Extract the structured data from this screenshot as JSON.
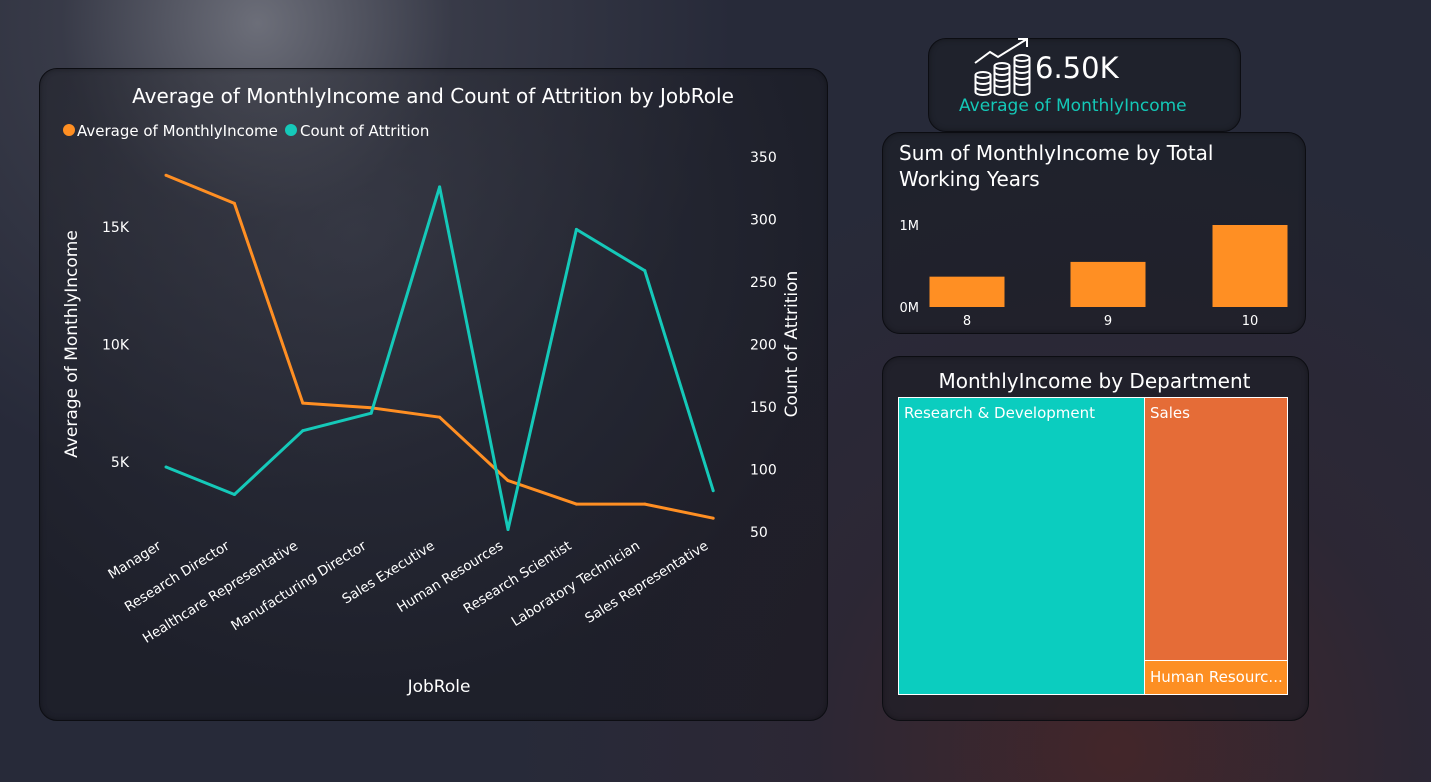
{
  "colors": {
    "income": "#ff8f23",
    "attrition": "#15c9b9",
    "background": "#272a39"
  },
  "main_chart": {
    "title": "Average of MonthlyIncome and Count of Attrition by JobRole",
    "legend": [
      "Average of MonthlyIncome",
      "Count of Attrition"
    ]
  },
  "kpi": {
    "value": "6.50K",
    "label": "Average of MonthlyIncome",
    "icon": "coins-growth-icon"
  },
  "bar_chart": {
    "title": "Sum of MonthlyIncome by Total\nWorking Years"
  },
  "treemap": {
    "title": "MonthlyIncome by Department",
    "tiles": [
      {
        "label": "Research & Development",
        "color": "#0bcdbf"
      },
      {
        "label": "Sales",
        "color": "#e56c37"
      },
      {
        "label": "Human Resourc...",
        "color": "#fd8f23"
      }
    ]
  },
  "chart_data": [
    {
      "type": "line",
      "title": "Average of MonthlyIncome and Count of Attrition by JobRole",
      "xlabel": "JobRole",
      "ylabel": "Average of MonthlyIncome",
      "y2label": "Count of Attrition",
      "categories": [
        "Manager",
        "Research Director",
        "Healthcare Representative",
        "Manufacturing Director",
        "Sales Executive",
        "Human Resources",
        "Research Scientist",
        "Laboratory Technician",
        "Sales Representative"
      ],
      "series": [
        {
          "name": "Average of MonthlyIncome",
          "axis": "left",
          "values": [
            17200,
            16000,
            7500,
            7300,
            6900,
            4200,
            3200,
            3200,
            2600
          ]
        },
        {
          "name": "Count of Attrition",
          "axis": "right",
          "values": [
            102,
            80,
            131,
            145,
            326,
            52,
            292,
            259,
            83
          ]
        }
      ],
      "yticks": [
        5000,
        10000,
        15000
      ],
      "yticklabels": [
        "5K",
        "10K",
        "15K"
      ],
      "y2ticks": [
        50,
        100,
        150,
        200,
        250,
        300,
        350
      ],
      "legend_position": "top-left",
      "grid": false
    },
    {
      "type": "bar",
      "title": "Sum of MonthlyIncome by Total Working Years",
      "categories": [
        "8",
        "9",
        "10"
      ],
      "values": [
        0.37,
        0.55,
        1.0
      ],
      "value_unit": "M",
      "yticks": [
        0,
        1
      ],
      "yticklabels": [
        "0M",
        "1M"
      ],
      "grid": false
    },
    {
      "type": "treemap",
      "title": "MonthlyIncome by Department",
      "categories": [
        "Research & Development",
        "Sales",
        "Human Resourc..."
      ],
      "values": [
        63,
        30,
        7
      ]
    }
  ]
}
